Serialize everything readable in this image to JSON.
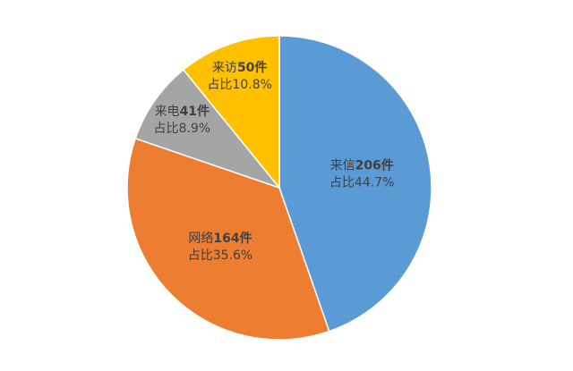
{
  "chart_data": {
    "type": "pie",
    "categories": [
      "来信",
      "网络",
      "来电",
      "来访"
    ],
    "values": [
      206,
      164,
      41,
      50
    ],
    "value_labels": [
      "206件",
      "164件",
      "41件",
      "50件"
    ],
    "percents": [
      44.7,
      35.6,
      8.9,
      10.8
    ],
    "percent_labels": [
      "占比44.7%",
      "占比35.6%",
      "占比8.9%",
      "占比10.8%"
    ],
    "colors": [
      "#5b9bd5",
      "#ed7d31",
      "#a5a5a5",
      "#ffc000"
    ]
  }
}
